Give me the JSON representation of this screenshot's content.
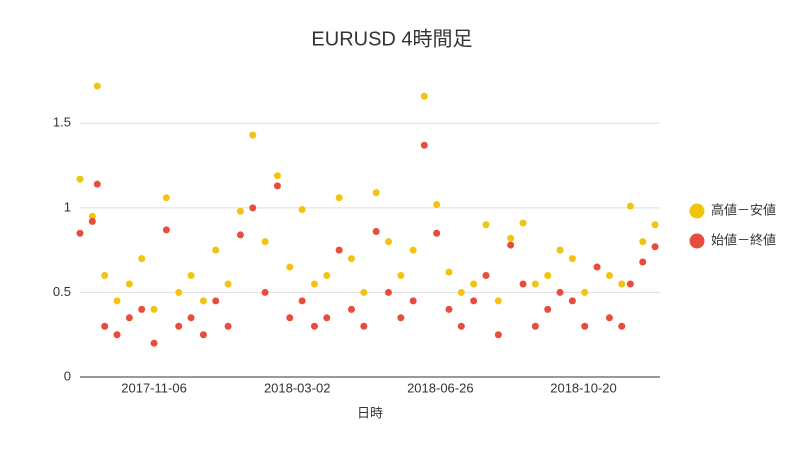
{
  "chart_data": {
    "type": "scatter",
    "title": "EURUSD 4時間足",
    "x_label": "日時",
    "x": [
      "2017-09-07",
      "2017-09-17",
      "2017-09-21",
      "2017-09-27",
      "2017-10-07",
      "2017-10-17",
      "2017-10-27",
      "2017-11-06",
      "2017-11-16",
      "2017-11-26",
      "2017-12-06",
      "2017-12-16",
      "2017-12-26",
      "2018-01-05",
      "2018-01-15",
      "2018-01-25",
      "2018-02-04",
      "2018-02-14",
      "2018-02-24",
      "2018-03-06",
      "2018-03-16",
      "2018-03-26",
      "2018-04-05",
      "2018-04-15",
      "2018-04-25",
      "2018-05-05",
      "2018-05-15",
      "2018-05-25",
      "2018-06-04",
      "2018-06-13",
      "2018-06-23",
      "2018-07-03",
      "2018-07-13",
      "2018-07-23",
      "2018-08-02",
      "2018-08-12",
      "2018-08-22",
      "2018-09-01",
      "2018-09-11",
      "2018-09-21",
      "2018-10-01",
      "2018-10-11",
      "2018-10-21",
      "2018-10-31",
      "2018-11-10",
      "2018-11-20",
      "2018-11-27",
      "2018-12-07",
      "2018-12-17"
    ],
    "series": [
      {
        "name": "高値－安値",
        "color": "#f1c40f",
        "values": [
          1.17,
          0.95,
          1.72,
          0.6,
          0.45,
          0.55,
          0.7,
          0.4,
          1.06,
          0.5,
          0.6,
          0.45,
          0.75,
          0.55,
          0.98,
          1.43,
          0.8,
          1.19,
          0.65,
          0.99,
          0.55,
          0.6,
          1.06,
          0.7,
          0.5,
          1.09,
          0.8,
          0.6,
          0.75,
          1.66,
          1.02,
          0.62,
          0.5,
          0.55,
          0.9,
          0.45,
          0.82,
          0.91,
          0.55,
          0.6,
          0.75,
          0.7,
          0.5,
          0.65,
          0.6,
          0.55,
          1.01,
          0.8,
          0.9
        ]
      },
      {
        "name": "始値－終値",
        "color": "#e74c3c",
        "values": [
          0.85,
          0.92,
          1.14,
          0.3,
          0.25,
          0.35,
          0.4,
          0.2,
          0.87,
          0.3,
          0.35,
          0.25,
          0.45,
          0.3,
          0.84,
          1.0,
          0.5,
          1.13,
          0.35,
          0.45,
          0.3,
          0.35,
          0.75,
          0.4,
          0.3,
          0.86,
          0.5,
          0.35,
          0.45,
          1.37,
          0.85,
          0.4,
          0.3,
          0.45,
          0.6,
          0.25,
          0.78,
          0.55,
          0.3,
          0.4,
          0.5,
          0.45,
          0.3,
          0.65,
          0.35,
          0.3,
          0.55,
          0.68,
          0.77
        ]
      }
    ],
    "xlim": [
      "2017-09-07",
      "2018-12-21"
    ],
    "xticks": [
      "2017-11-06",
      "2018-03-02",
      "2018-06-26",
      "2018-10-20"
    ],
    "ylim": [
      0,
      1.75
    ],
    "yticks": [
      0,
      0.5,
      1,
      1.5
    ],
    "grid": true,
    "legend": "right"
  }
}
